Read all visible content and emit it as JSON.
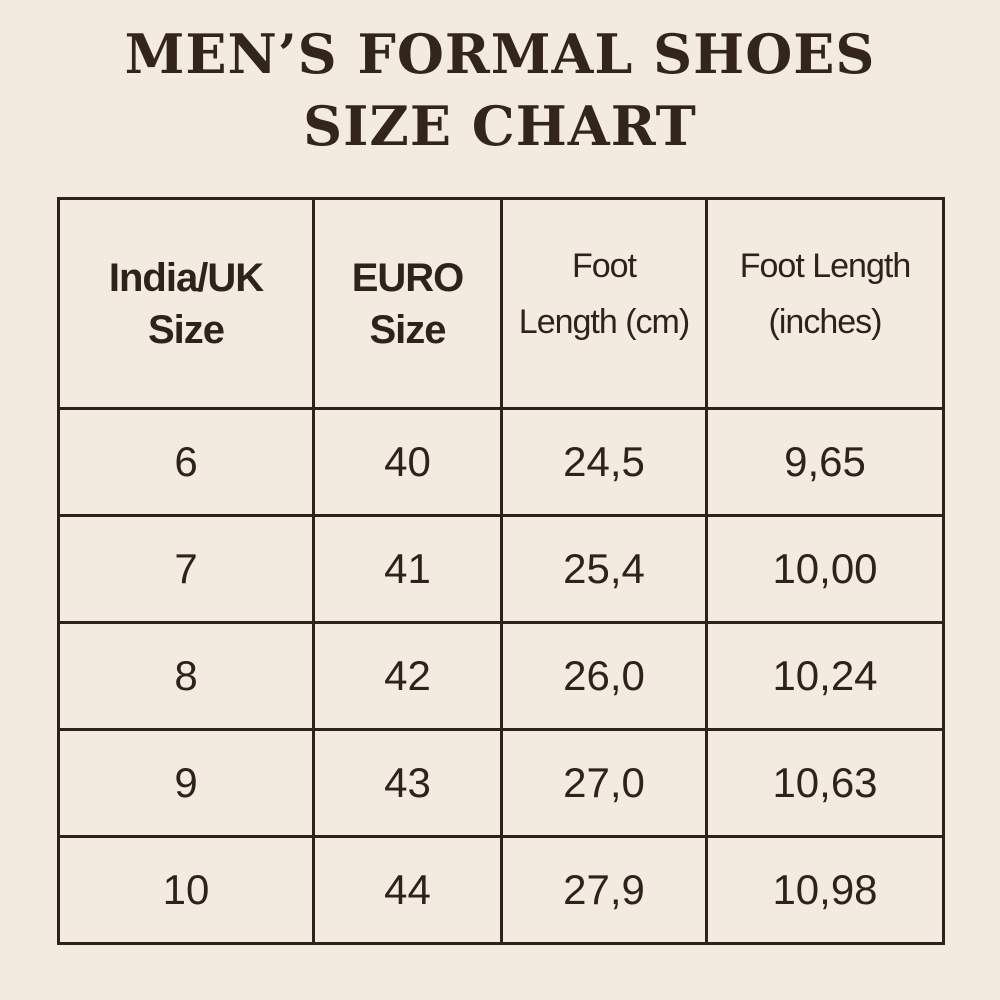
{
  "title": {
    "line1": "MEN’S FORMAL SHOES",
    "line2": "SIZE CHART"
  },
  "colors": {
    "background": "#f3ebe0",
    "text": "#2f211b"
  },
  "table": {
    "headers": [
      [
        "India/UK",
        "Size"
      ],
      [
        "EURO",
        "Size"
      ],
      [
        "Foot",
        "Length (cm)"
      ],
      [
        "Foot Length",
        "(inches)"
      ]
    ],
    "rows": [
      [
        "6",
        "40",
        "24,5",
        "9,65"
      ],
      [
        "7",
        "41",
        "25,4",
        "10,00"
      ],
      [
        "8",
        "42",
        "26,0",
        "10,24"
      ],
      [
        "9",
        "43",
        "27,0",
        "10,63"
      ],
      [
        "10",
        "44",
        "27,9",
        "10,98"
      ]
    ]
  }
}
